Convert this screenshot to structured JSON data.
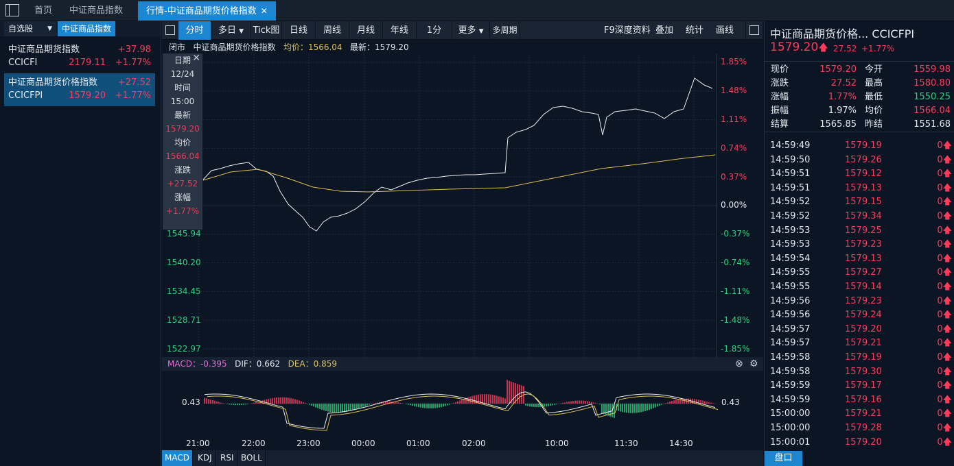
{
  "tabs": {
    "home": "首页",
    "index": "中证商品指数",
    "active": "行情-中证商品期货价格指数"
  },
  "left": {
    "tab1": "自选股",
    "tab2": "中证商品指数",
    "items": [
      {
        "name": "中证商品期货指数",
        "change": "+37.98",
        "code": "CCICFI",
        "price": "2179.11",
        "pct": "+1.77%"
      },
      {
        "name": "中证商品期货价格指数",
        "change": "+27.52",
        "code": "CCICFPI",
        "price": "1579.20",
        "pct": "+1.77%"
      }
    ]
  },
  "toolbar": {
    "buttons": [
      "分时",
      "多日",
      "Tick图",
      "日线",
      "周线",
      "月线",
      "年线",
      "1分",
      "更多",
      "多周期"
    ],
    "right": [
      "F9深度资料",
      "叠加",
      "统计",
      "画线"
    ]
  },
  "info": {
    "status": "闭市",
    "name": "中证商品期货价格指数",
    "avg_label": "均价：1566.04",
    "last_label": "最新：1579.20"
  },
  "tooltip": {
    "date_label": "日期",
    "date": "12/24",
    "time_label": "时间",
    "time": "15:00",
    "last_label": "最新",
    "last": "1579.20",
    "avg_label": "均价",
    "avg": "1566.04",
    "chg_label": "涨跌",
    "chg": "+27.52",
    "pct_label": "涨幅",
    "pct": "+1.77%"
  },
  "yaxis_left": [
    "1545.94",
    "1540.20",
    "1534.45",
    "1528.71",
    "1522.97"
  ],
  "yaxis_right": [
    "1.85%",
    "1.48%",
    "1.11%",
    "0.74%",
    "0.37%",
    "0.00%",
    "-0.37%",
    "-0.74%",
    "-1.11%",
    "-1.48%",
    "-1.85%"
  ],
  "macd": {
    "macd": "MACD：-0.395",
    "dif": "DIF：0.662",
    "dea": "DEA：0.859",
    "level": "0.43"
  },
  "xaxis": [
    "21:00",
    "22:00",
    "23:00",
    "00:00",
    "01:00",
    "02:00",
    "10:00",
    "11:30",
    "14:30"
  ],
  "bottom_tabs": [
    "MACD",
    "KDJ",
    "RSI",
    "BOLL"
  ],
  "right": {
    "title": "中证商品期货价格... CCICFPI",
    "price": "1579.20",
    "chg": "27.52",
    "pct": "+1.77%",
    "quote": [
      {
        "k": "现价",
        "v": "1579.20",
        "k2": "今开",
        "v2": "1559.98"
      },
      {
        "k": "涨跌",
        "v": "27.52",
        "k2": "最高",
        "v2": "1580.80"
      },
      {
        "k": "涨幅",
        "v": "1.77%",
        "k2": "最低",
        "v2": "1550.25"
      },
      {
        "k": "振幅",
        "v": "1.97%",
        "k2": "均价",
        "v2": "1566.04"
      },
      {
        "k": "结算",
        "v": "1565.85",
        "k2": "昨结",
        "v2": "1551.68"
      }
    ],
    "ticks": [
      [
        "14:59:49",
        "1579.19"
      ],
      [
        "14:59:50",
        "1579.26"
      ],
      [
        "14:59:51",
        "1579.12"
      ],
      [
        "14:59:51",
        "1579.13"
      ],
      [
        "14:59:52",
        "1579.15"
      ],
      [
        "14:59:52",
        "1579.34"
      ],
      [
        "14:59:53",
        "1579.25"
      ],
      [
        "14:59:53",
        "1579.23"
      ],
      [
        "14:59:54",
        "1579.13"
      ],
      [
        "14:59:55",
        "1579.27"
      ],
      [
        "14:59:55",
        "1579.14"
      ],
      [
        "14:59:56",
        "1579.23"
      ],
      [
        "14:59:56",
        "1579.24"
      ],
      [
        "14:59:57",
        "1579.20"
      ],
      [
        "14:59:57",
        "1579.21"
      ],
      [
        "14:59:58",
        "1579.19"
      ],
      [
        "14:59:58",
        "1579.30"
      ],
      [
        "14:59:59",
        "1579.17"
      ],
      [
        "14:59:59",
        "1579.16"
      ],
      [
        "15:00:00",
        "1579.21"
      ],
      [
        "15:00:00",
        "1579.28"
      ],
      [
        "15:00:01",
        "1579.20"
      ]
    ],
    "tick_vol": "0",
    "pankou": "盘口"
  },
  "colors": {
    "up": "#ff3b5c",
    "down": "#2fd07f",
    "accent": "#1c86d1",
    "avg": "#e0c052"
  }
}
